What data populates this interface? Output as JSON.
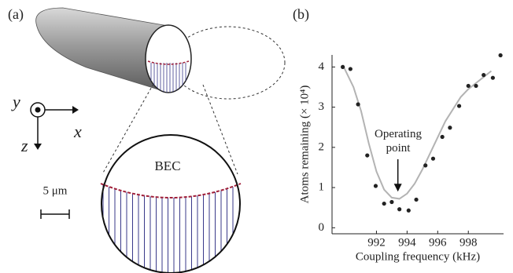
{
  "panel_a": {
    "label": "(a)",
    "axis_y": "y",
    "axis_x": "x",
    "axis_z": "z",
    "region_label": "BEC",
    "scale_bar": "5 μm"
  },
  "chart_data": {
    "type": "scatter",
    "label": "(b)",
    "x_label": "Coupling frequency (kHz)",
    "y_label": "Atoms remaining (× 10⁴)",
    "x": [
      989.8,
      990.3,
      990.8,
      991.4,
      991.95,
      992.5,
      993.0,
      993.5,
      994.1,
      994.6,
      995.2,
      995.7,
      996.3,
      996.8,
      997.4,
      998.0,
      998.5,
      999.0,
      999.6,
      1000.1
    ],
    "values": [
      4.0,
      3.95,
      3.07,
      1.8,
      1.04,
      0.6,
      0.64,
      0.46,
      0.43,
      0.7,
      1.55,
      1.72,
      2.26,
      2.49,
      3.03,
      3.53,
      3.53,
      3.8,
      3.73,
      4.29
    ],
    "color": "#222222",
    "fit": {
      "color": "#b3b3b3",
      "x": [
        989.8,
        990.5,
        991,
        991.5,
        992,
        992.5,
        993,
        993.5,
        994,
        994.5,
        995,
        995.5,
        996,
        996.5,
        997,
        997.5,
        998,
        998.5,
        999,
        999.5
      ],
      "values": [
        4.05,
        3.5,
        2.9,
        2.1,
        1.4,
        0.95,
        0.75,
        0.72,
        0.85,
        1.1,
        1.45,
        1.85,
        2.25,
        2.65,
        2.95,
        3.25,
        3.45,
        3.6,
        3.75,
        3.9
      ]
    },
    "annotation": {
      "text": "Operating point",
      "x": 993.4,
      "y": 0.9
    },
    "xlim": [
      989.1,
      1000.3
    ],
    "ylim": [
      -0.15,
      4.3
    ],
    "xticks": [
      992,
      994,
      996,
      998
    ],
    "yticks": [
      0,
      1,
      2,
      3,
      4
    ]
  }
}
